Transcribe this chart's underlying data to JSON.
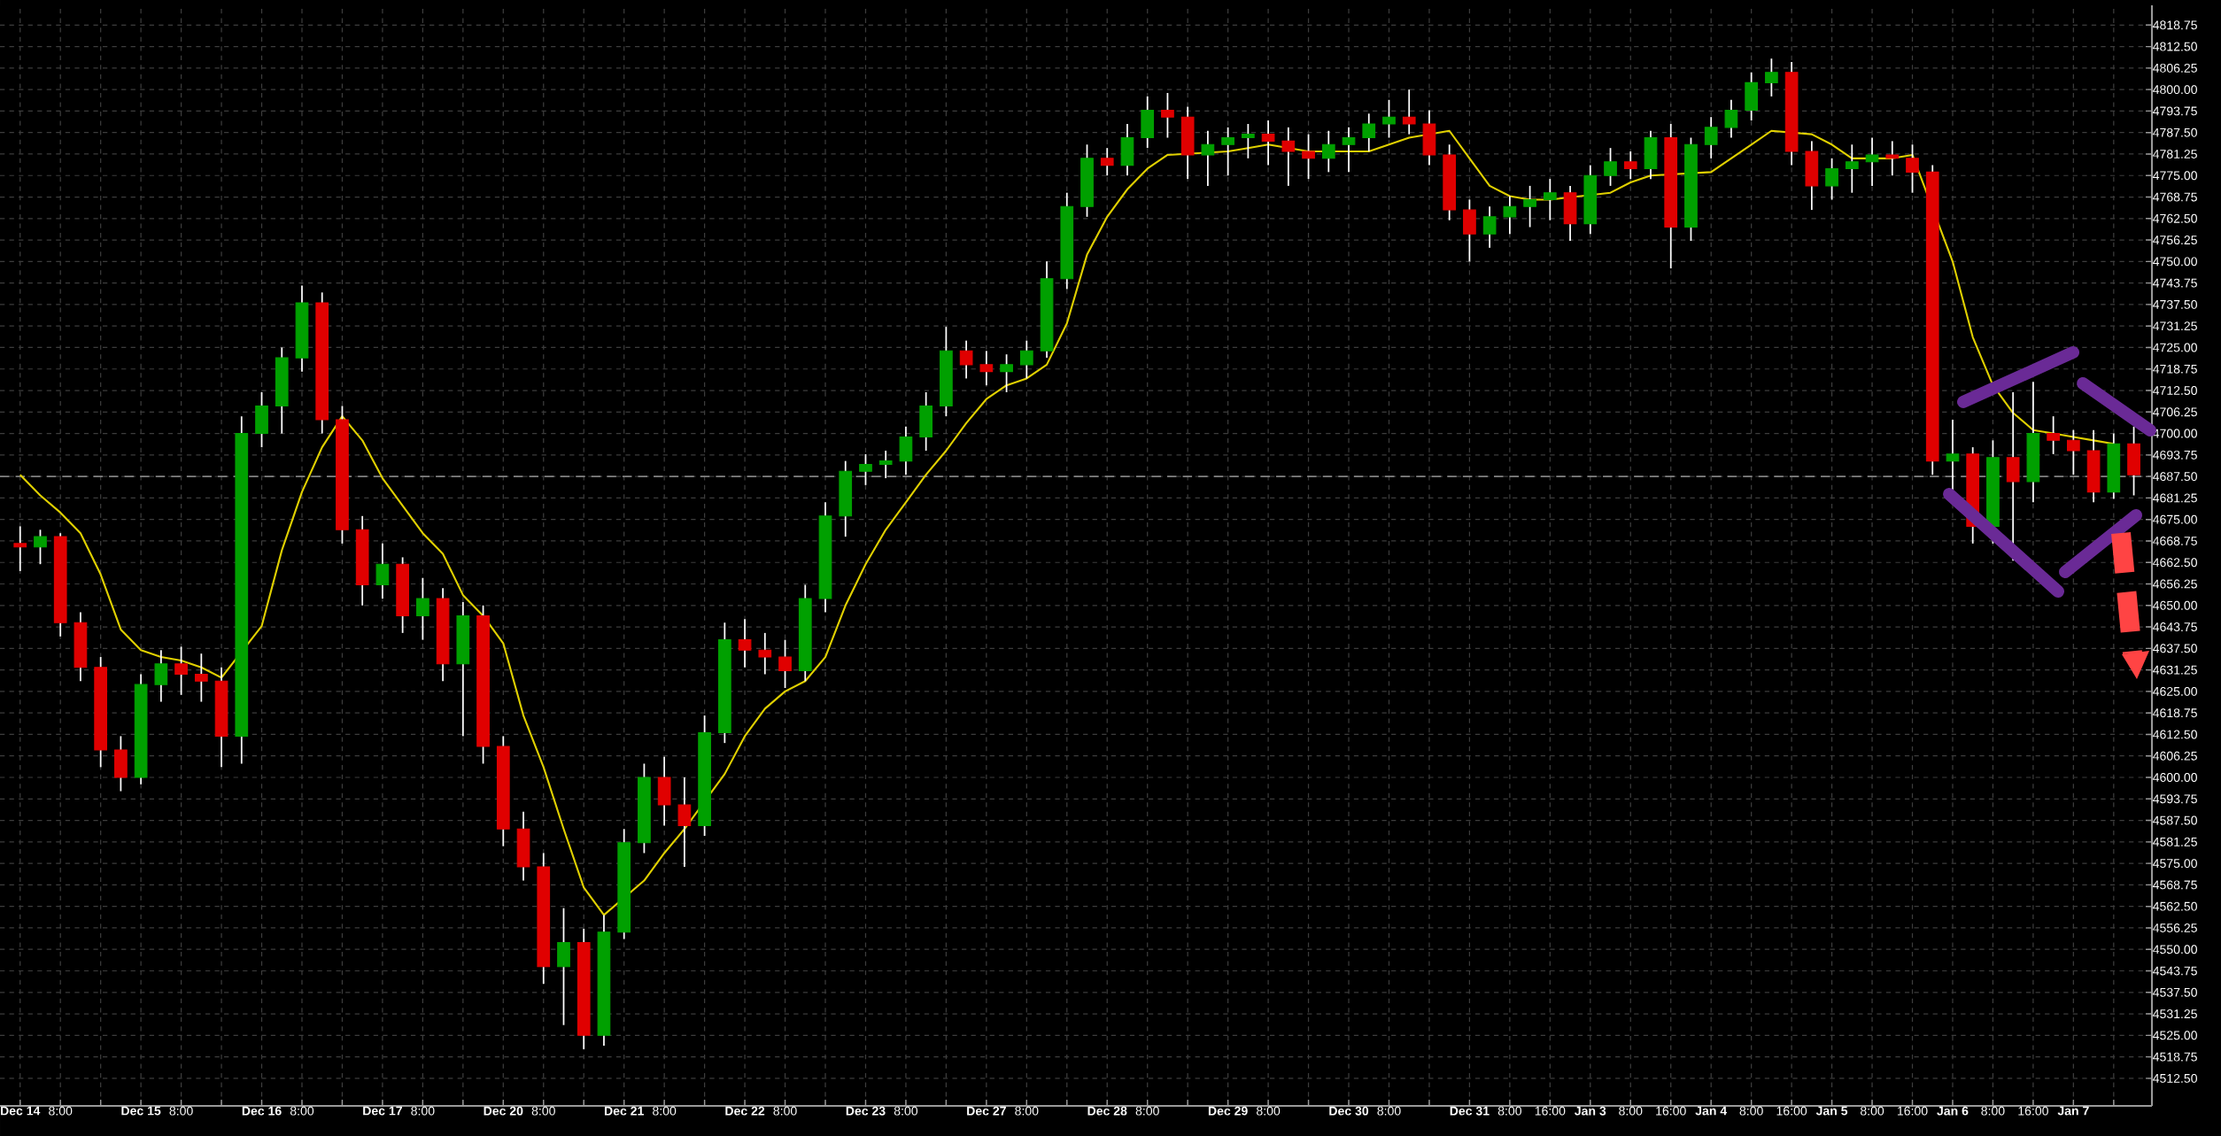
{
  "chart_data": {
    "type": "candlestick",
    "categories": [
      "Dec 14",
      null,
      "8:00",
      null,
      null,
      null,
      "Dec 15",
      null,
      "8:00",
      null,
      null,
      null,
      "Dec 16",
      null,
      "8:00",
      null,
      null,
      null,
      "Dec 17",
      null,
      "8:00",
      null,
      null,
      null,
      "Dec 20",
      null,
      "8:00",
      null,
      null,
      null,
      "Dec 21",
      null,
      "8:00",
      null,
      null,
      null,
      "Dec 22",
      null,
      "8:00",
      null,
      null,
      null,
      "Dec 23",
      null,
      "8:00",
      null,
      null,
      null,
      "Dec 27",
      null,
      "8:00",
      null,
      null,
      null,
      "Dec 28",
      null,
      "8:00",
      null,
      null,
      null,
      "Dec 29",
      null,
      "8:00",
      null,
      null,
      null,
      "Dec 30",
      null,
      "8:00",
      null,
      null,
      null,
      "Dec 31",
      null,
      "8:00",
      null,
      "16:00",
      null,
      "Jan 3",
      null,
      "8:00",
      null,
      "16:00",
      null,
      "Jan 4",
      null,
      "8:00",
      null,
      "16:00",
      null,
      "Jan 5",
      null,
      "8:00",
      null,
      "16:00",
      null,
      "Jan 6",
      null,
      "8:00",
      null,
      "16:00",
      null,
      "Jan 7",
      null,
      null,
      null
    ],
    "ohlc": [
      [
        4668,
        4673,
        4660,
        4667
      ],
      [
        4667,
        4672,
        4662,
        4670
      ],
      [
        4670,
        4671,
        4641,
        4645
      ],
      [
        4645,
        4648,
        4628,
        4632
      ],
      [
        4632,
        4635,
        4603,
        4608
      ],
      [
        4608,
        4612,
        4596,
        4600
      ],
      [
        4600,
        4630,
        4598,
        4627
      ],
      [
        4627,
        4637,
        4622,
        4633
      ],
      [
        4633,
        4638,
        4624,
        4630
      ],
      [
        4630,
        4636,
        4622,
        4628
      ],
      [
        4628,
        4632,
        4603,
        4612
      ],
      [
        4612,
        4705,
        4604,
        4700
      ],
      [
        4700,
        4712,
        4696,
        4708
      ],
      [
        4708,
        4725,
        4700,
        4722
      ],
      [
        4722,
        4743,
        4718,
        4738
      ],
      [
        4738,
        4741,
        4700,
        4704
      ],
      [
        4704,
        4708,
        4668,
        4672
      ],
      [
        4672,
        4676,
        4650,
        4656
      ],
      [
        4656,
        4668,
        4652,
        4662
      ],
      [
        4662,
        4664,
        4642,
        4647
      ],
      [
        4647,
        4658,
        4640,
        4652
      ],
      [
        4652,
        4655,
        4628,
        4633
      ],
      [
        4633,
        4651,
        4612,
        4647
      ],
      [
        4647,
        4650,
        4604,
        4609
      ],
      [
        4609,
        4612,
        4580,
        4585
      ],
      [
        4585,
        4590,
        4570,
        4574
      ],
      [
        4574,
        4578,
        4540,
        4545
      ],
      [
        4545,
        4562,
        4528,
        4552
      ],
      [
        4552,
        4556,
        4521,
        4525
      ],
      [
        4525,
        4560,
        4522,
        4555
      ],
      [
        4555,
        4585,
        4553,
        4581
      ],
      [
        4581,
        4604,
        4578,
        4600
      ],
      [
        4600,
        4606,
        4586,
        4592
      ],
      [
        4592,
        4600,
        4574,
        4586
      ],
      [
        4586,
        4618,
        4583,
        4613
      ],
      [
        4613,
        4645,
        4610,
        4640
      ],
      [
        4640,
        4646,
        4632,
        4637
      ],
      [
        4637,
        4642,
        4630,
        4635
      ],
      [
        4635,
        4640,
        4626,
        4631
      ],
      [
        4631,
        4656,
        4628,
        4652
      ],
      [
        4652,
        4680,
        4648,
        4676
      ],
      [
        4676,
        4692,
        4670,
        4689
      ],
      [
        4689,
        4694,
        4685,
        4691
      ],
      [
        4691,
        4695,
        4687,
        4692
      ],
      [
        4692,
        4702,
        4688,
        4699
      ],
      [
        4699,
        4712,
        4695,
        4708
      ],
      [
        4708,
        4731,
        4705,
        4724
      ],
      [
        4724,
        4727,
        4716,
        4720
      ],
      [
        4720,
        4724,
        4714,
        4718
      ],
      [
        4718,
        4723,
        4712,
        4720
      ],
      [
        4720,
        4727,
        4716,
        4724
      ],
      [
        4724,
        4750,
        4722,
        4745
      ],
      [
        4745,
        4770,
        4742,
        4766
      ],
      [
        4766,
        4784,
        4763,
        4780
      ],
      [
        4780,
        4783,
        4775,
        4778
      ],
      [
        4778,
        4790,
        4775,
        4786
      ],
      [
        4786,
        4798,
        4783,
        4794
      ],
      [
        4794,
        4799,
        4786,
        4792
      ],
      [
        4792,
        4795,
        4774,
        4781
      ],
      [
        4781,
        4788,
        4772,
        4784
      ],
      [
        4784,
        4789,
        4775,
        4786
      ],
      [
        4786,
        4790,
        4780,
        4787
      ],
      [
        4787,
        4791,
        4778,
        4785
      ],
      [
        4785,
        4789,
        4772,
        4782
      ],
      [
        4782,
        4787,
        4774,
        4780
      ],
      [
        4780,
        4788,
        4776,
        4784
      ],
      [
        4784,
        4789,
        4776,
        4786
      ],
      [
        4786,
        4793,
        4782,
        4790
      ],
      [
        4790,
        4797,
        4786,
        4792
      ],
      [
        4792,
        4800,
        4787,
        4790
      ],
      [
        4790,
        4794,
        4778,
        4781
      ],
      [
        4781,
        4784,
        4762,
        4765
      ],
      [
        4765,
        4768,
        4750,
        4758
      ],
      [
        4758,
        4766,
        4754,
        4763
      ],
      [
        4763,
        4769,
        4758,
        4766
      ],
      [
        4766,
        4772,
        4760,
        4768
      ],
      [
        4768,
        4774,
        4762,
        4770
      ],
      [
        4770,
        4772,
        4756,
        4761
      ],
      [
        4761,
        4778,
        4758,
        4775
      ],
      [
        4775,
        4783,
        4772,
        4779
      ],
      [
        4779,
        4782,
        4774,
        4777
      ],
      [
        4777,
        4788,
        4774,
        4786
      ],
      [
        4786,
        4790,
        4748,
        4760
      ],
      [
        4760,
        4786,
        4756,
        4784
      ],
      [
        4784,
        4792,
        4780,
        4789
      ],
      [
        4789,
        4797,
        4786,
        4794
      ],
      [
        4794,
        4805,
        4791,
        4802
      ],
      [
        4802,
        4809,
        4798,
        4805
      ],
      [
        4805,
        4808,
        4778,
        4782
      ],
      [
        4782,
        4785,
        4765,
        4772
      ],
      [
        4772,
        4780,
        4768,
        4777
      ],
      [
        4777,
        4784,
        4770,
        4779
      ],
      [
        4779,
        4786,
        4772,
        4781
      ],
      [
        4781,
        4785,
        4775,
        4780
      ],
      [
        4780,
        4784,
        4770,
        4776
      ],
      [
        4776,
        4778,
        4688,
        4692
      ],
      [
        4692,
        4704,
        4683,
        4694
      ],
      [
        4694,
        4696,
        4668,
        4673
      ],
      [
        4673,
        4698,
        4668,
        4693
      ],
      [
        4693,
        4712,
        4663,
        4686
      ],
      [
        4686,
        4715,
        4680,
        4700
      ],
      [
        4700,
        4705,
        4694,
        4698
      ],
      [
        4698,
        4701,
        4688,
        4695
      ],
      [
        4695,
        4701,
        4680,
        4683
      ],
      [
        4683,
        4700,
        4681,
        4697
      ],
      [
        4697,
        4702,
        4682,
        4688
      ]
    ],
    "colors": [
      "#e00000",
      "#00a000",
      "#e00000",
      "#e00000",
      "#e00000",
      "#e00000",
      "#00a000",
      "#00a000",
      "#e00000",
      "#e00000",
      "#e00000",
      "#00a000",
      "#00a000",
      "#00a000",
      "#00a000",
      "#e00000",
      "#e00000",
      "#e00000",
      "#00a000",
      "#e00000",
      "#00a000",
      "#e00000",
      "#00a000",
      "#e00000",
      "#e00000",
      "#e00000",
      "#e00000",
      "#00a000",
      "#e00000",
      "#00a000",
      "#00a000",
      "#00a000",
      "#e00000",
      "#e00000",
      "#00a000",
      "#00a000",
      "#e00000",
      "#e00000",
      "#e00000",
      "#00a000",
      "#00a000",
      "#00a000",
      "#00a000",
      "#00a000",
      "#00a000",
      "#00a000",
      "#00a000",
      "#e00000",
      "#e00000",
      "#00a000",
      "#00a000",
      "#00a000",
      "#00a000",
      "#00a000",
      "#e00000",
      "#00a000",
      "#00a000",
      "#e00000",
      "#e00000",
      "#00a000",
      "#00a000",
      "#00a000",
      "#e00000",
      "#e00000",
      "#e00000",
      "#00a000",
      "#00a000",
      "#00a000",
      "#00a000",
      "#e00000",
      "#e00000",
      "#e00000",
      "#e00000",
      "#00a000",
      "#00a000",
      "#00a000",
      "#00a000",
      "#e00000",
      "#00a000",
      "#00a000",
      "#e00000",
      "#00a000",
      "#e00000",
      "#00a000",
      "#00a000",
      "#00a000",
      "#00a000",
      "#00a000",
      "#e00000",
      "#e00000",
      "#00a000",
      "#00a000",
      "#00a000",
      "#e00000",
      "#e00000",
      "#e00000",
      "#00a000",
      "#e00000",
      "#00a000",
      "#e00000",
      "#00a000",
      "#e00000",
      "#e00000",
      "#e00000",
      "#00a000",
      "#e00000"
    ],
    "series": [
      {
        "type": "line",
        "color": "#e0d000",
        "values": [
          4688,
          4682,
          4677,
          4671,
          4659,
          4643,
          4637,
          4635,
          4634,
          4632,
          4629,
          null,
          4644,
          4666,
          4683,
          4696,
          4705,
          4698,
          4687,
          4679,
          4671,
          4665,
          4653,
          4647,
          4639,
          4618,
          4603,
          4585,
          4568,
          4560,
          null,
          4570,
          4578,
          4585,
          null,
          4601,
          4612,
          4620,
          4625,
          4628,
          4635,
          4650,
          4662,
          4672,
          4680,
          4688,
          4695,
          4703,
          4710,
          4714,
          4716,
          4720,
          4732,
          4752,
          4763,
          4771,
          4777,
          4781,
          null,
          null,
          4782,
          4783,
          4784,
          null,
          4782,
          null,
          4782,
          4782,
          4784,
          4786,
          null,
          4788,
          4780,
          4772,
          4769,
          4768,
          4768,
          null,
          null,
          4770,
          4773,
          4775,
          null,
          null,
          4776,
          4780,
          4784,
          4788,
          null,
          4787,
          4784,
          4780,
          null,
          4780,
          4781,
          null,
          4750,
          4728,
          4714,
          4706,
          4701,
          4700,
          4699,
          4698,
          4697,
          null
        ]
      }
    ],
    "ylim": [
      4504.5,
      4824.5
    ],
    "yticks": [
      {
        "value": 4512.5,
        "label": "4512.50"
      },
      4518.75,
      {
        "value": 4525,
        "label": "4525.00"
      },
      4531.25,
      {
        "value": 4537.5,
        "label": "4537.50"
      },
      4543.75,
      {
        "value": 4550,
        "label": "4550.00"
      },
      4556.25,
      {
        "value": 4562.5,
        "label": "4562.50"
      },
      4568.75,
      {
        "value": 4575,
        "label": "4575.00"
      },
      4581.25,
      {
        "value": 4587.5,
        "label": "4587.50"
      },
      4593.75,
      {
        "value": 4600,
        "label": "4600.00"
      },
      4606.25,
      {
        "value": 4612.5,
        "label": "4612.50"
      },
      4618.75,
      {
        "value": 4625,
        "label": "4625.00"
      },
      4631.25,
      {
        "value": 4637.5,
        "label": "4637.50"
      },
      4643.75,
      {
        "value": 4650,
        "label": "4650.00"
      },
      4656.25,
      {
        "value": 4662.5,
        "label": "4662.50"
      },
      4668.75,
      {
        "value": 4675,
        "label": "4675.00"
      },
      4681.25,
      {
        "value": 4687.5,
        "label": "4687.50"
      },
      4693.75,
      {
        "value": 4700,
        "label": "4700.00"
      },
      4706.25,
      {
        "value": 4712.5,
        "label": "4712.50"
      },
      4718.75,
      {
        "value": 4725,
        "label": "4725.00"
      },
      4731.25,
      {
        "value": 4737.5,
        "label": "4737.50"
      },
      4743.75,
      {
        "value": 4750,
        "label": "4750.00"
      },
      4756.25,
      {
        "value": 4762.5,
        "label": "4762.50"
      },
      4768.75,
      {
        "value": 4775,
        "label": "4775.00"
      },
      4781.25,
      {
        "value": 4787.5,
        "label": "4787.50"
      },
      4793.75,
      {
        "value": 4800,
        "label": "4800.00"
      },
      4806.25,
      {
        "value": 4812.5,
        "label": "4812.50"
      },
      4818.75
    ],
    "grid": true,
    "ref_lines": [
      {
        "axis": "y",
        "value": 4687.5,
        "color": "#808080",
        "line_style": "dashed"
      }
    ]
  }
}
